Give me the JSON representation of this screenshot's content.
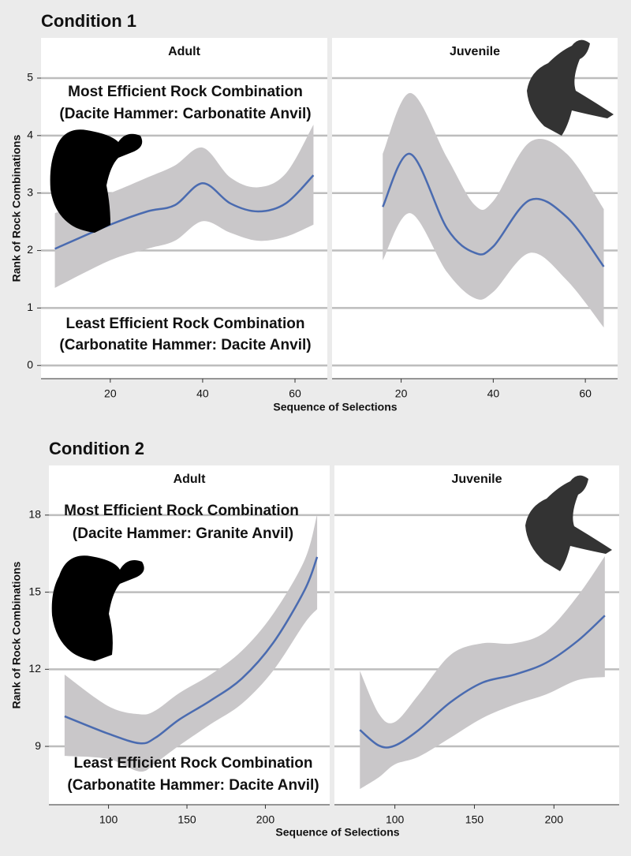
{
  "chart_data": [
    {
      "type": "line",
      "title": "Condition 1",
      "xlabel": "Sequence of Selections",
      "ylabel": "Rank of Rock Combinations",
      "xlim": [
        5,
        67
      ],
      "ylim": [
        -0.23,
        5.7
      ],
      "xticks": [
        20,
        40,
        60
      ],
      "yticks": [
        0,
        1,
        2,
        3,
        4,
        5
      ],
      "grid": true,
      "color": "#4a6bb0",
      "band_color": "#c9c7c9",
      "annotations": [
        "Most Efficient Rock Combination",
        "(Dacite Hammer: Carbonatite Anvil)",
        "Least Efficient Rock Combination",
        "(Carbonatite Hammer: Dacite Anvil)"
      ],
      "panels": [
        {
          "title": "Adult",
          "x": [
            8,
            20,
            28,
            34,
            40,
            46,
            52,
            58,
            64
          ],
          "values": [
            2.03,
            2.45,
            2.68,
            2.79,
            3.17,
            2.82,
            2.68,
            2.82,
            3.31
          ],
          "upper": [
            2.65,
            3.0,
            3.27,
            3.48,
            3.79,
            3.27,
            3.1,
            3.34,
            4.19
          ],
          "lower": [
            1.35,
            1.83,
            2.03,
            2.17,
            2.51,
            2.31,
            2.17,
            2.24,
            2.45
          ]
        },
        {
          "title": "Juvenile",
          "x": [
            16,
            22,
            30,
            36,
            40,
            48,
            56,
            64
          ],
          "values": [
            2.76,
            3.68,
            2.38,
            1.96,
            2.07,
            2.88,
            2.58,
            1.72
          ],
          "upper": [
            3.68,
            4.74,
            3.61,
            2.79,
            2.86,
            3.89,
            3.68,
            2.72
          ],
          "lower": [
            1.83,
            2.65,
            1.62,
            1.17,
            1.28,
            1.96,
            1.48,
            0.66
          ]
        }
      ]
    },
    {
      "type": "line",
      "title": "Condition 2",
      "xlabel": "Sequence of Selections",
      "ylabel": "Rank of Rock Combinations",
      "xlim": [
        62,
        241
      ],
      "ylim": [
        6.73,
        19.93
      ],
      "xticks": [
        100,
        150,
        200
      ],
      "yticks": [
        9,
        12,
        15,
        18
      ],
      "grid": true,
      "color": "#4a6bb0",
      "band_color": "#c9c7c9",
      "annotations": [
        "Most Efficient Rock Combination",
        "(Dacite Hammer: Granite Anvil)",
        "Least Efficient Rock Combination",
        "(Carbonatite Hammer: Dacite Anvil)"
      ],
      "panels": [
        {
          "title": "Adult",
          "x": [
            72,
            100,
            120,
            130,
            145,
            165,
            185,
            205,
            225,
            233
          ],
          "values": [
            10.17,
            9.49,
            9.12,
            9.34,
            10.04,
            10.78,
            11.64,
            13.03,
            15.08,
            16.37
          ],
          "upper": [
            11.79,
            10.56,
            10.25,
            10.4,
            11.07,
            11.79,
            12.72,
            14.16,
            16.25,
            18.03
          ],
          "lower": [
            8.63,
            8.51,
            8.02,
            8.36,
            9.03,
            9.86,
            10.66,
            11.95,
            13.79,
            14.34
          ]
        },
        {
          "title": "Juvenile",
          "x": [
            78,
            90,
            100,
            115,
            135,
            155,
            175,
            195,
            215,
            232
          ],
          "values": [
            9.64,
            9.03,
            9.03,
            9.64,
            10.72,
            11.48,
            11.79,
            12.25,
            13.11,
            14.09
          ],
          "upper": [
            11.94,
            10.26,
            9.95,
            11.02,
            12.56,
            13.01,
            13.01,
            13.47,
            14.86,
            16.4
          ],
          "lower": [
            7.34,
            7.8,
            8.3,
            8.6,
            9.34,
            10.1,
            10.62,
            11.02,
            11.58,
            11.7
          ]
        }
      ]
    }
  ]
}
